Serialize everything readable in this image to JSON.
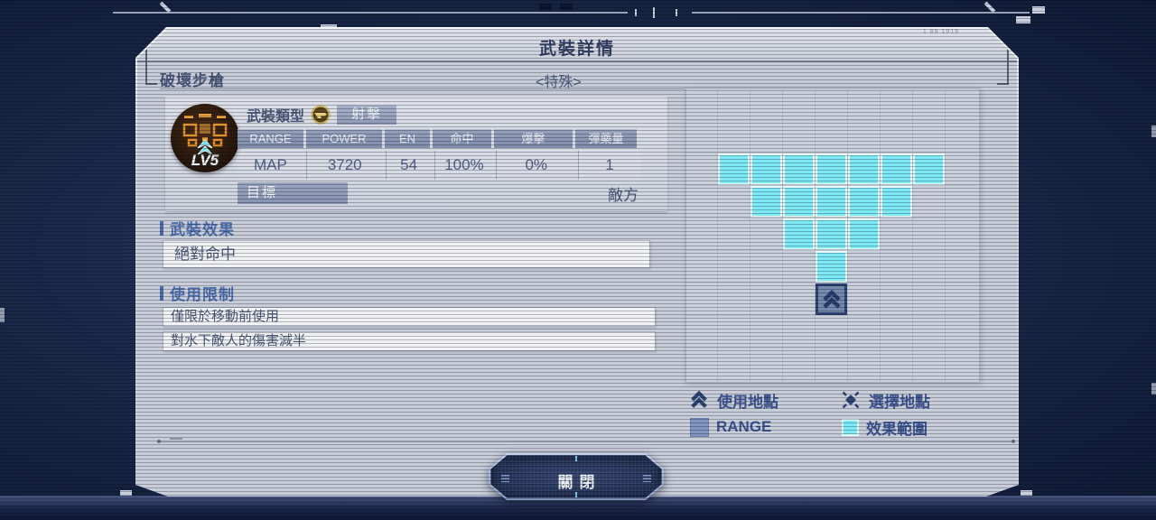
{
  "window": {
    "title": "武裝詳情",
    "serial_text": "1 89 1919",
    "close_label": "關閉"
  },
  "weapon": {
    "name": "破壞步槍",
    "category_tag": "<特殊>",
    "level_badge": "LV5",
    "type_label": "武裝類型",
    "type_value": "射擊",
    "stats": {
      "headers": [
        "RANGE",
        "POWER",
        "EN",
        "命中",
        "爆擊",
        "彈藥量"
      ],
      "values": [
        "MAP",
        "3720",
        "54",
        "100%",
        "0%",
        "1"
      ]
    },
    "target_label": "目標",
    "target_value": "敵方"
  },
  "effect_section": {
    "title": "武裝效果",
    "items": [
      "絕對命中"
    ]
  },
  "restriction_section": {
    "title": "使用限制",
    "items": [
      "僅限於移動前使用",
      "對水下敵人的傷害減半"
    ]
  },
  "map_grid": {
    "rows": 9,
    "cols": 9,
    "effect_cells": [
      [
        2,
        1
      ],
      [
        2,
        2
      ],
      [
        2,
        3
      ],
      [
        2,
        4
      ],
      [
        2,
        5
      ],
      [
        2,
        6
      ],
      [
        2,
        7
      ],
      [
        3,
        2
      ],
      [
        3,
        3
      ],
      [
        3,
        4
      ],
      [
        3,
        5
      ],
      [
        3,
        6
      ],
      [
        4,
        3
      ],
      [
        4,
        4
      ],
      [
        4,
        5
      ],
      [
        5,
        4
      ]
    ],
    "user_cell": [
      6,
      4
    ]
  },
  "legend": {
    "items": [
      {
        "icon": "double-chevron-up-icon",
        "label": "使用地點"
      },
      {
        "icon": "select-point-icon",
        "label": "選擇地點"
      },
      {
        "icon": "range-swatch",
        "label": "RANGE"
      },
      {
        "icon": "effect-range-swatch",
        "label": "效果範圍"
      }
    ]
  },
  "colors": {
    "effect_range_cyan": "#7de9f7",
    "range_swatch_blue": "#8095c0",
    "marker_navy": "#2c4373",
    "accent_blue": "#4c6dab",
    "panel_bg": "#c7ccd9",
    "background_navy": "#16233f",
    "type_icon_gold": "#d6bb6a",
    "icon_pattern_orange": "#e0912f",
    "level_arrow_cyan": "#67e3f2"
  }
}
